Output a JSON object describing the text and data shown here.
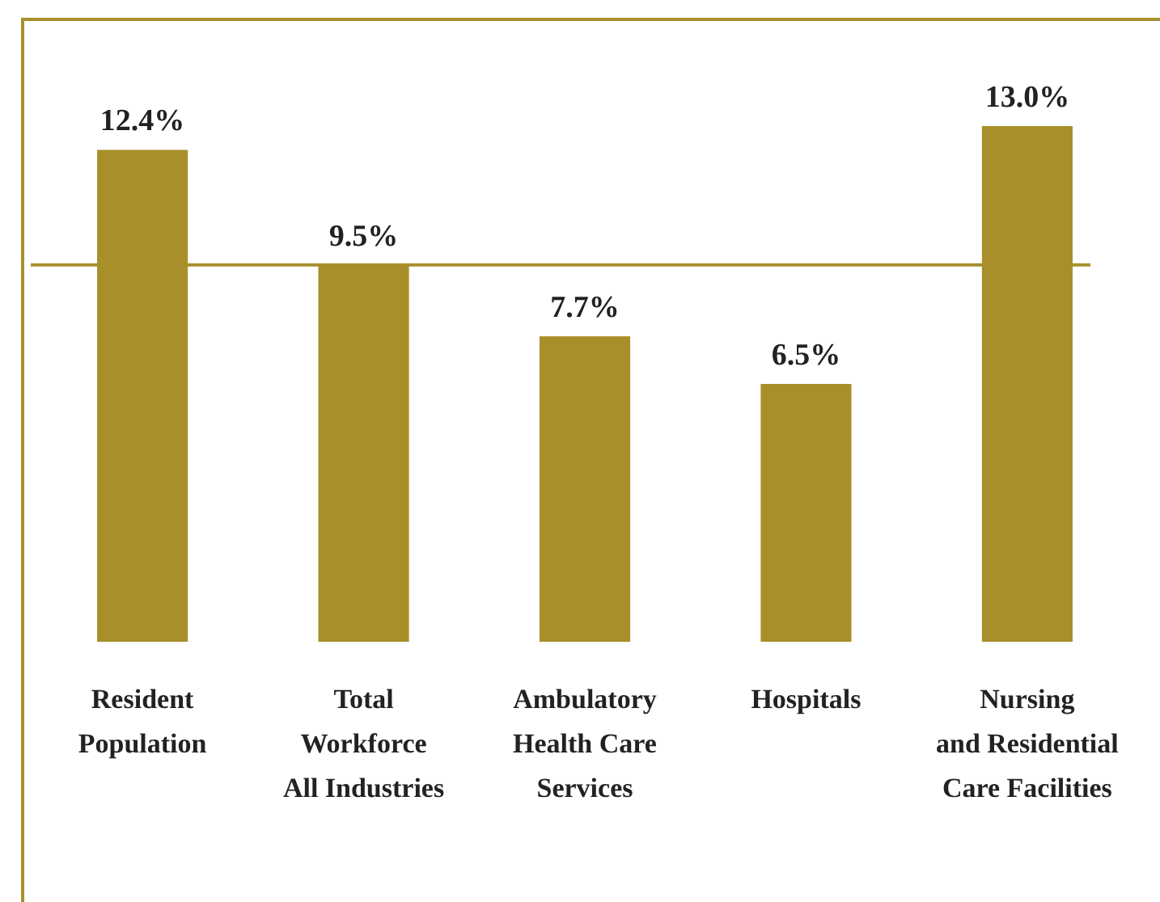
{
  "chart_data": {
    "type": "bar",
    "categories": [
      "Resident\nPopulation",
      "Total\nWorkforce\nAll Industries",
      "Ambulatory\nHealth Care\nServices",
      "Hospitals",
      "Nursing\nand Residential\nCare Facilities"
    ],
    "values": [
      12.4,
      9.5,
      7.7,
      6.5,
      13.0
    ],
    "value_labels": [
      "12.4%",
      "9.5%",
      "7.7%",
      "6.5%",
      "13.0%"
    ],
    "color": "#a88f2a",
    "ref_lines": [
      {
        "axis": "y",
        "value": 9.5,
        "color": "#a88f2a"
      }
    ]
  }
}
